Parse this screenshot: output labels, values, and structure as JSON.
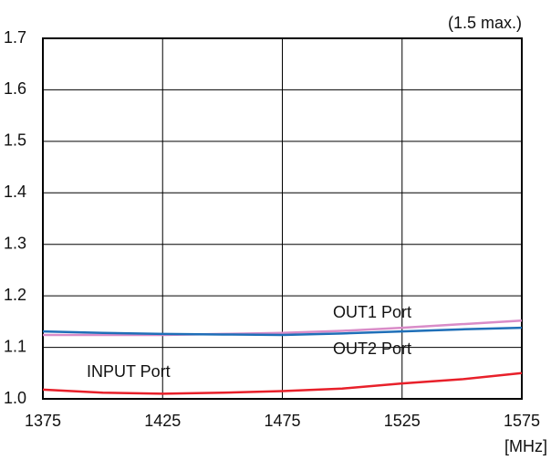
{
  "chart_data": {
    "type": "line",
    "annotation": "(1.5 max.)",
    "x_label": "[MHz]",
    "x": [
      1375,
      1400,
      1425,
      1450,
      1475,
      1500,
      1525,
      1550,
      1575
    ],
    "series": [
      {
        "name": "OUT1 Port",
        "color": "#d98cc8",
        "values": [
          1.124,
          1.124,
          1.124,
          1.126,
          1.128,
          1.132,
          1.138,
          1.145,
          1.152
        ]
      },
      {
        "name": "OUT2 Port",
        "color": "#1f6fb8",
        "values": [
          1.131,
          1.128,
          1.126,
          1.125,
          1.124,
          1.127,
          1.131,
          1.135,
          1.138
        ]
      },
      {
        "name": "INPUT Port",
        "color": "#e8202a",
        "values": [
          1.018,
          1.012,
          1.01,
          1.012,
          1.015,
          1.02,
          1.03,
          1.038,
          1.05
        ]
      }
    ],
    "xlim": [
      1375,
      1575
    ],
    "xticks": [
      1375,
      1425,
      1475,
      1525,
      1575
    ],
    "ylim": [
      1,
      1.7
    ],
    "yticks": [
      {
        "value": 1,
        "label": "1.0"
      },
      1.1,
      1.2,
      1.3,
      1.4,
      1.5,
      1.6,
      1.7
    ],
    "grid": true
  }
}
